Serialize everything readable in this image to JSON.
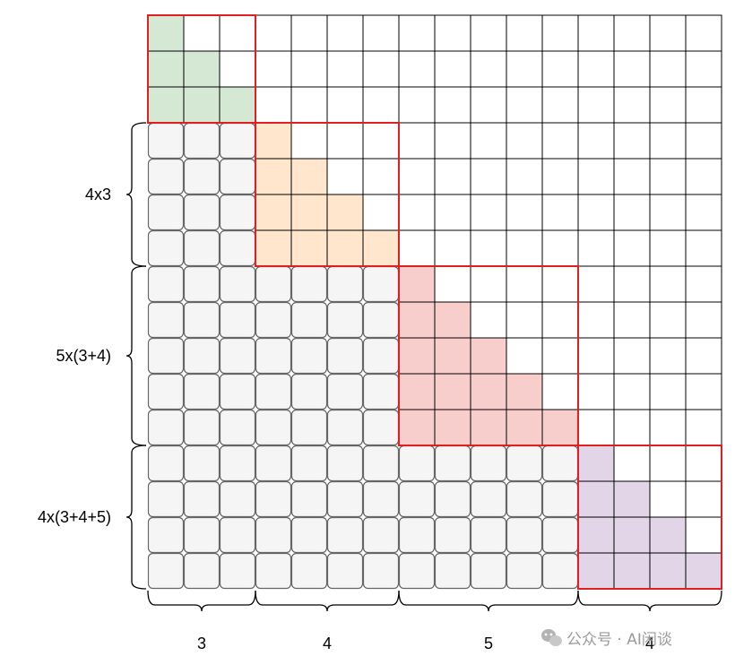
{
  "grid": {
    "rows": 16,
    "cols": 16,
    "blocks": [
      {
        "name": "block-1",
        "size": 3,
        "fill": "#d5e8d4"
      },
      {
        "name": "block-2",
        "size": 4,
        "fill": "#ffe6cc"
      },
      {
        "name": "block-3",
        "size": 5,
        "fill": "#f8cecc"
      },
      {
        "name": "block-4",
        "size": 4,
        "fill": "#e1d5e7"
      }
    ],
    "lower_fill": "#f5f5f5",
    "lower_stroke": "#666666",
    "block_border_color": "#e02020"
  },
  "labels": {
    "left": [
      "4x3",
      "5x(3+4)",
      "4x(3+4+5)"
    ],
    "bottom": [
      "3",
      "4",
      "5",
      "4"
    ]
  },
  "watermark": {
    "text": "公众号 · AI闲谈",
    "icon": "wechat-icon"
  }
}
